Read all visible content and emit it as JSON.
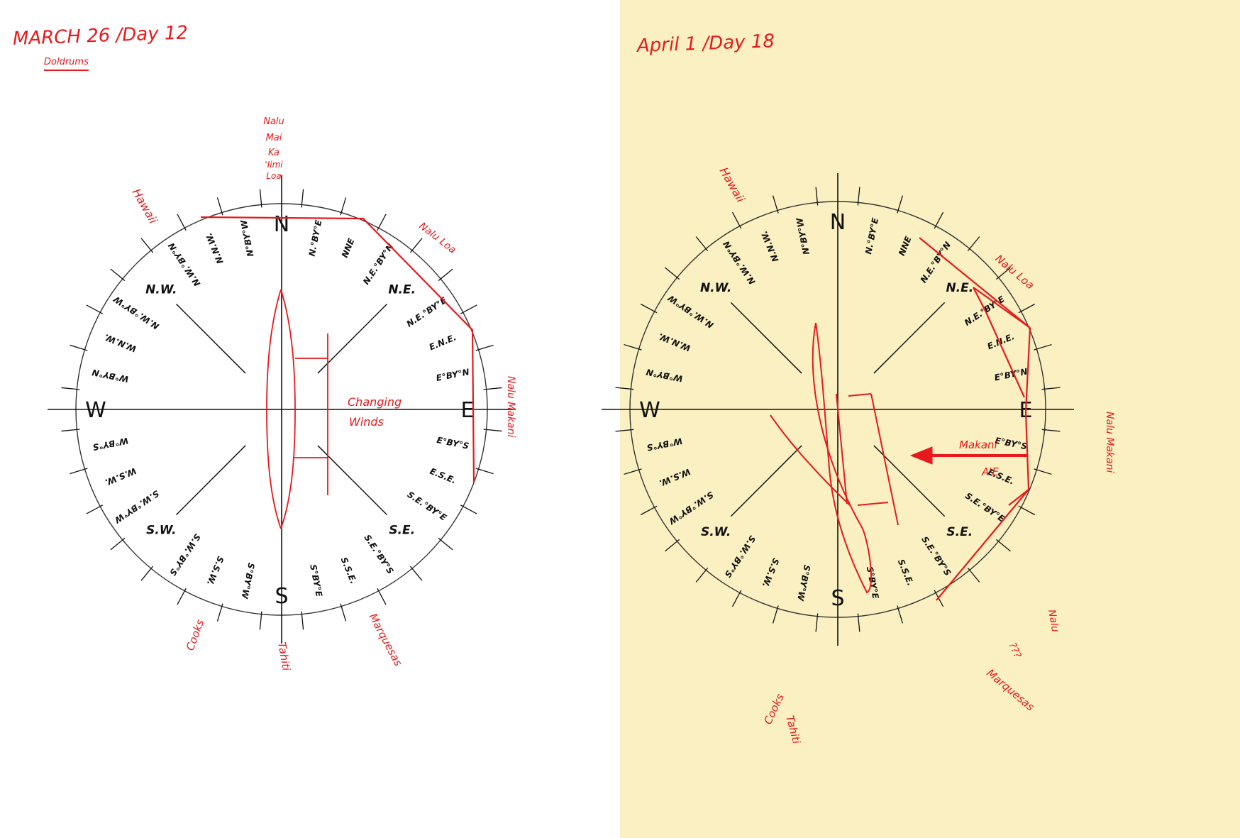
{
  "colors": {
    "ink": "#111111",
    "red": "#e8191c",
    "paper_right": "#fbf0c2"
  },
  "cardinals": [
    "N",
    "E",
    "S",
    "W"
  ],
  "intercardinals": [
    "N.E.",
    "S.E.",
    "S.W.",
    "N.W."
  ],
  "sectors": [
    "N.°BY°E",
    "NNE",
    "N.E.°BY°N",
    "N.E.°BY°E",
    "E.N.E.",
    "E°BY°N",
    "E°BY°S",
    "E.S.E.",
    "S.E.°BY°E",
    "S.E.°BY°S",
    "S.S.E.",
    "S°BY°E",
    "S°BY°W",
    "S.S.W.",
    "S.W.°BY°S",
    "S.W.°BY°W",
    "W.S.W.",
    "W°BY°S",
    "W°BY°N",
    "W.N.W.",
    "N.W.°BY°W",
    "N.W.°BY°N",
    "N.N.W.",
    "N°BY°W"
  ],
  "panels": [
    {
      "title": "MARCH 26 /Day 12",
      "subtitle": "Doldrums",
      "annotations": {
        "hawaii": "Hawaii",
        "north_star": [
          "Nalu",
          "Mai",
          "Ka",
          "'Iimi",
          "Loa"
        ],
        "nalu_loa": "Nalu Loa",
        "nalu_makani": "Nalu Makani",
        "cooks": "Cooks",
        "tahiti": "Tahiti",
        "marquesas": "Marquesas",
        "winds": [
          "Changing",
          "Winds"
        ]
      }
    },
    {
      "title": "April 1 /Day 18",
      "annotations": {
        "hawaii": "Hawaii",
        "nalu_loa": "Nalu Loa",
        "nalu_makani": "Nalu Makani",
        "makani": [
          "Makani",
          "A'E"
        ],
        "nalu_right": "Nalu",
        "question_marks": "???",
        "marquesas": "Marquesas",
        "cooks": "Cooks",
        "tahiti": "Tahiti"
      }
    }
  ]
}
